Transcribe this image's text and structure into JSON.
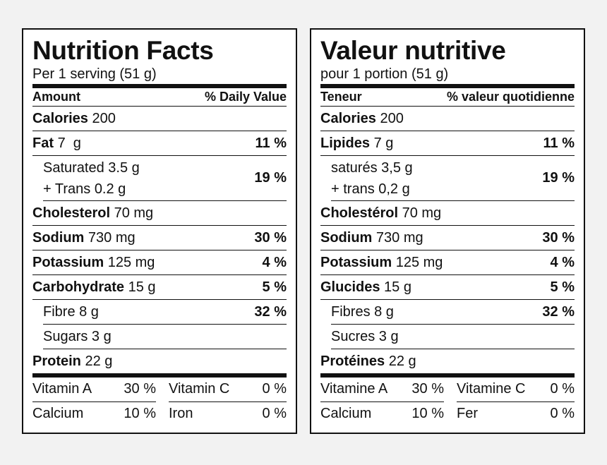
{
  "en": {
    "title": "Nutrition Facts",
    "serving": "Per 1 serving (51 g)",
    "amount_label": "Amount",
    "dv_label": "% Daily Value",
    "calories": {
      "label": "Calories",
      "value": "200"
    },
    "fat": {
      "label": "Fat",
      "value": "7  g",
      "dv": "11 %"
    },
    "saturated": {
      "line1": "Saturated 3.5 g",
      "line2": "+ Trans 0.2 g",
      "dv": "19 %"
    },
    "cholesterol": {
      "label": "Cholesterol",
      "value": "70 mg"
    },
    "sodium": {
      "label": "Sodium",
      "value": "730 mg",
      "dv": "30 %"
    },
    "potassium": {
      "label": "Potassium",
      "value": "125 mg",
      "dv": "4 %"
    },
    "carbohydrate": {
      "label": "Carbohydrate",
      "value": "15 g",
      "dv": "5 %"
    },
    "fibre": {
      "text": "Fibre 8 g",
      "dv": "32 %"
    },
    "sugars": {
      "text": "Sugars 3 g"
    },
    "protein": {
      "label": "Protein",
      "value": "22 g"
    },
    "vitamin_a": {
      "label": "Vitamin A",
      "value": "30 %"
    },
    "vitamin_c": {
      "label": "Vitamin C",
      "value": "0 %"
    },
    "calcium": {
      "label": "Calcium",
      "value": "10 %"
    },
    "iron": {
      "label": "Iron",
      "value": "0 %"
    }
  },
  "fr": {
    "title": "Valeur nutritive",
    "serving": "pour 1 portion (51 g)",
    "amount_label": "Teneur",
    "dv_label": "% valeur quotidienne",
    "calories": {
      "label": "Calories",
      "value": "200"
    },
    "fat": {
      "label": "Lipides",
      "value": "7 g",
      "dv": "11 %"
    },
    "saturated": {
      "line1": "saturés 3,5 g",
      "line2": "+ trans 0,2 g",
      "dv": "19 %"
    },
    "cholesterol": {
      "label": "Cholestérol",
      "value": "70 mg"
    },
    "sodium": {
      "label": "Sodium",
      "value": "730 mg",
      "dv": "30 %"
    },
    "potassium": {
      "label": "Potassium",
      "value": "125 mg",
      "dv": "4 %"
    },
    "carbohydrate": {
      "label": "Glucides",
      "value": "15 g",
      "dv": "5 %"
    },
    "fibre": {
      "text": "Fibres 8 g",
      "dv": "32 %"
    },
    "sugars": {
      "text": "Sucres 3 g"
    },
    "protein": {
      "label": "Protéines",
      "value": "22 g"
    },
    "vitamin_a": {
      "label": "Vitamine A",
      "value": "30 %"
    },
    "vitamin_c": {
      "label": "Vitamine C",
      "value": "0 %"
    },
    "calcium": {
      "label": "Calcium",
      "value": "10 %"
    },
    "iron": {
      "label": "Fer",
      "value": "0 %"
    }
  }
}
